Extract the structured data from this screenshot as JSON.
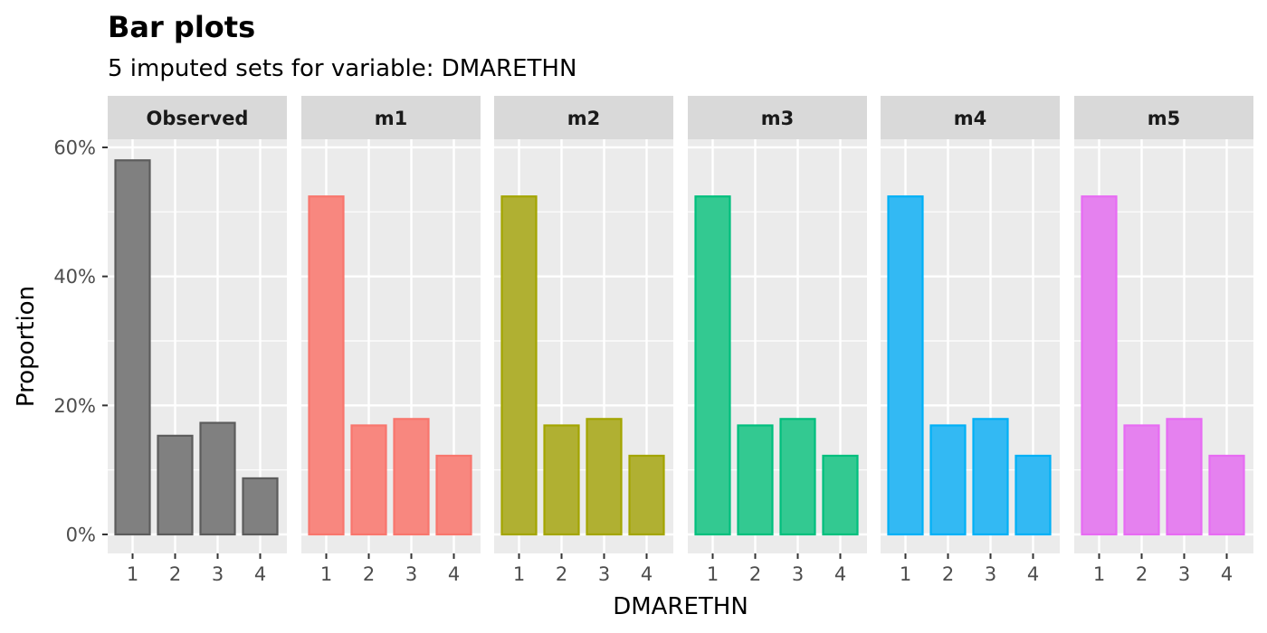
{
  "chart_data": {
    "type": "bar",
    "title": "Bar plots",
    "subtitle": "5  imputed sets for variable:  DMARETHN",
    "xlabel": "DMARETHN",
    "ylabel": "Proportion",
    "categories": [
      "1",
      "2",
      "3",
      "4"
    ],
    "ylim": [
      0,
      0.6
    ],
    "y_ticks": [
      {
        "value": 0,
        "label": "0%"
      },
      {
        "value": 0.2,
        "label": "20%"
      },
      {
        "value": 0.4,
        "label": "40%"
      },
      {
        "value": 0.6,
        "label": "60%"
      }
    ],
    "grid": true,
    "facet_strip_color": "#d9d9d9",
    "panel_background": "#ebebeb",
    "series": [
      {
        "name": "Observed",
        "fill": "#808080",
        "outline": "#5c5c5c",
        "values": [
          0.58,
          0.153,
          0.173,
          0.087
        ]
      },
      {
        "name": "m1",
        "fill": "#f8877f",
        "outline": "#f8766d",
        "values": [
          0.524,
          0.169,
          0.179,
          0.122
        ]
      },
      {
        "name": "m2",
        "fill": "#b0b032",
        "outline": "#a3a500",
        "values": [
          0.524,
          0.169,
          0.179,
          0.122
        ]
      },
      {
        "name": "m3",
        "fill": "#33c991",
        "outline": "#00bf7d",
        "values": [
          0.524,
          0.169,
          0.179,
          0.122
        ]
      },
      {
        "name": "m4",
        "fill": "#33b9f3",
        "outline": "#00b0f6",
        "values": [
          0.524,
          0.169,
          0.179,
          0.122
        ]
      },
      {
        "name": "m5",
        "fill": "#e581ef",
        "outline": "#e76bf3",
        "values": [
          0.524,
          0.169,
          0.179,
          0.122
        ]
      }
    ]
  }
}
